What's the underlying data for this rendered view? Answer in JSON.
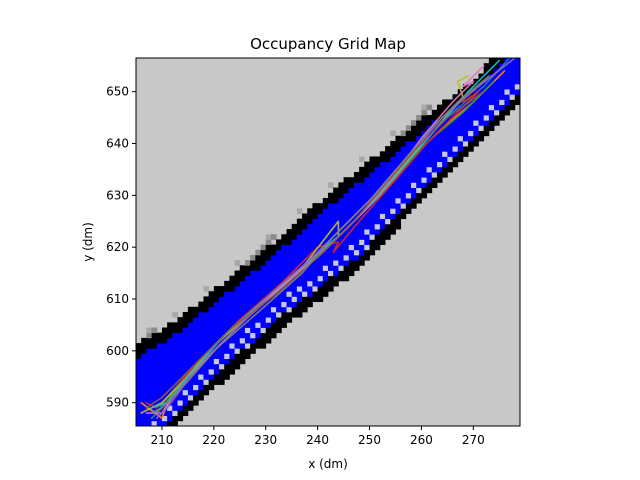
{
  "chart_data": {
    "type": "heatmap",
    "title": "Occupancy Grid Map",
    "xlabel": "x (dm)",
    "ylabel": "y (dm)",
    "xlim": [
      205,
      279
    ],
    "ylim": [
      585.5,
      656.5
    ],
    "xticks": [
      210,
      220,
      230,
      240,
      250,
      260,
      270
    ],
    "yticks": [
      590,
      600,
      610,
      620,
      630,
      640,
      650
    ],
    "grid": false,
    "legend": "none",
    "colors": {
      "unknown": "#c8c8c8",
      "free": "#0000ff",
      "occupied": "#000000",
      "faint_free": "#c8c8dc"
    },
    "corridor": {
      "description_free_band": "free cells along corridor",
      "centerline": [
        [
          205,
          586
        ],
        [
          210,
          592
        ],
        [
          230,
          612
        ],
        [
          250,
          630
        ],
        [
          270,
          648
        ],
        [
          279,
          656.5
        ]
      ],
      "wall_upper": [
        [
          205,
          600
        ],
        [
          212,
          604
        ],
        [
          222,
          612
        ],
        [
          232,
          620
        ],
        [
          242,
          629
        ],
        [
          252,
          637
        ],
        [
          262,
          645
        ],
        [
          270,
          651
        ],
        [
          275,
          656.5
        ]
      ],
      "wall_lower": [
        [
          210,
          584
        ],
        [
          220,
          594
        ],
        [
          235,
          607
        ],
        [
          248,
          617
        ],
        [
          258,
          628
        ],
        [
          266,
          636
        ],
        [
          272,
          642
        ],
        [
          279,
          649
        ]
      ]
    },
    "series": [
      {
        "values": [
          [
            207,
            589
          ],
          [
            209,
            588
          ],
          [
            211,
            591
          ],
          [
            216,
            597
          ],
          [
            224,
            605
          ],
          [
            232,
            612
          ],
          [
            240,
            618
          ],
          [
            244,
            622
          ],
          [
            248,
            626
          ],
          [
            254,
            633
          ],
          [
            260,
            640
          ],
          [
            266,
            646
          ],
          [
            272,
            651
          ],
          [
            277,
            656.5
          ]
        ],
        "color": "#1f77b4"
      },
      {
        "values": [
          [
            206,
            590
          ],
          [
            210,
            587
          ],
          [
            212,
            592
          ],
          [
            218,
            598
          ],
          [
            226,
            606
          ],
          [
            234,
            613
          ],
          [
            241,
            619
          ],
          [
            246,
            624
          ],
          [
            252,
            630
          ],
          [
            258,
            637
          ],
          [
            264,
            643
          ],
          [
            270,
            648
          ],
          [
            276,
            654
          ]
        ],
        "color": "#ff7f0e"
      },
      {
        "values": [
          [
            208,
            587
          ],
          [
            210,
            589
          ],
          [
            213,
            593
          ],
          [
            219,
            600
          ],
          [
            228,
            608
          ],
          [
            236,
            615
          ],
          [
            243,
            621
          ],
          [
            250,
            628
          ],
          [
            256,
            635
          ],
          [
            262,
            641
          ],
          [
            268,
            646
          ],
          [
            274,
            652
          ]
        ],
        "color": "#2ca02c"
      },
      {
        "values": [
          [
            207,
            590
          ],
          [
            209,
            589
          ],
          [
            212,
            592
          ],
          [
            217,
            598
          ],
          [
            225,
            606
          ],
          [
            233,
            613
          ],
          [
            240,
            620
          ],
          [
            244,
            621
          ],
          [
            243,
            619
          ],
          [
            248,
            625
          ],
          [
            255,
            633
          ],
          [
            261,
            640
          ],
          [
            267,
            646
          ],
          [
            271,
            650
          ],
          [
            268,
            648
          ]
        ],
        "color": "#d62728"
      },
      {
        "values": [
          [
            206,
            588
          ],
          [
            210,
            590
          ],
          [
            214,
            594
          ],
          [
            220,
            601
          ],
          [
            229,
            609
          ],
          [
            237,
            616
          ],
          [
            244,
            625
          ],
          [
            244,
            622
          ],
          [
            249,
            627
          ],
          [
            255,
            634
          ],
          [
            262,
            642
          ],
          [
            268,
            649
          ],
          [
            267,
            652
          ],
          [
            269,
            653
          ]
        ],
        "color": "#bcbd22"
      },
      {
        "values": [
          [
            208,
            589
          ],
          [
            211,
            590
          ],
          [
            215,
            595
          ],
          [
            222,
            603
          ],
          [
            230,
            610
          ],
          [
            238,
            617
          ],
          [
            245,
            623
          ],
          [
            251,
            629
          ],
          [
            257,
            636
          ],
          [
            263,
            643
          ],
          [
            269,
            650
          ],
          [
            275,
            656
          ]
        ],
        "color": "#17becf"
      },
      {
        "values": [
          [
            207,
            588
          ],
          [
            210,
            588
          ],
          [
            212,
            591
          ],
          [
            219,
            599
          ],
          [
            227,
            607
          ],
          [
            235,
            614
          ],
          [
            242,
            620
          ],
          [
            249,
            627
          ],
          [
            254,
            633
          ],
          [
            260,
            641
          ],
          [
            266,
            648
          ],
          [
            270,
            652
          ],
          [
            268,
            651
          ],
          [
            272,
            655
          ]
        ],
        "color": "#e377c2"
      },
      {
        "values": [
          [
            209,
            587
          ],
          [
            211,
            589
          ],
          [
            214,
            593
          ],
          [
            221,
            601
          ],
          [
            231,
            611
          ],
          [
            239,
            618
          ],
          [
            245,
            624
          ],
          [
            252,
            631
          ],
          [
            258,
            638
          ],
          [
            264,
            645
          ],
          [
            271,
            651
          ],
          [
            278,
            656.5
          ]
        ],
        "color": "#9467bd"
      },
      {
        "values": [
          [
            207,
            589
          ],
          [
            210,
            591
          ],
          [
            213,
            594
          ],
          [
            223,
            604
          ],
          [
            232,
            611
          ],
          [
            241,
            619
          ],
          [
            247,
            625
          ],
          [
            253,
            632
          ],
          [
            259,
            639
          ],
          [
            265,
            645
          ],
          [
            272,
            650
          ]
        ],
        "color": "#8c564b"
      },
      {
        "values": [
          [
            208,
            588
          ],
          [
            210,
            589
          ],
          [
            212,
            591
          ],
          [
            220,
            600
          ],
          [
            228,
            607
          ],
          [
            237,
            615
          ],
          [
            243,
            622
          ],
          [
            250,
            629
          ],
          [
            256,
            636
          ],
          [
            262,
            643
          ],
          [
            267,
            648
          ],
          [
            273,
            653
          ]
        ],
        "color": "#7f7f7f"
      }
    ]
  }
}
